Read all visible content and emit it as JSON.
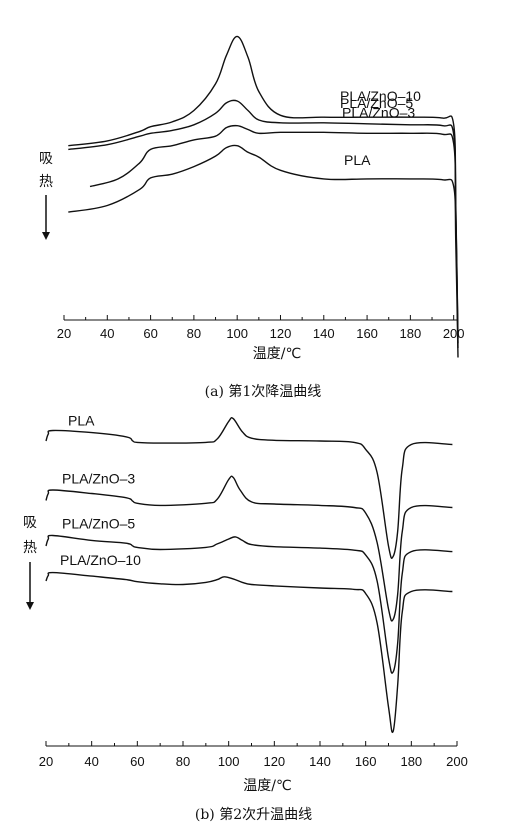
{
  "chart_data": [
    {
      "type": "line",
      "title": "",
      "caption": "(a) 第1次降温曲线",
      "xlabel": "温度/℃",
      "ylabel": "吸热",
      "xlim": [
        20,
        202
      ],
      "xticks": [
        20,
        40,
        60,
        80,
        100,
        120,
        140,
        160,
        180,
        200
      ],
      "yaxis_visible": false,
      "legend": "inline labels",
      "series": [
        {
          "name": "PLA/ZnO–10",
          "x": [
            22,
            40,
            55,
            60,
            70,
            80,
            90,
            95,
            100,
            105,
            110,
            120,
            140,
            160,
            180,
            195,
            200,
            201,
            202
          ],
          "y": [
            -0.27,
            -0.22,
            -0.12,
            -0.07,
            -0.02,
            0.1,
            0.38,
            0.68,
            0.88,
            0.66,
            0.3,
            0.05,
            0.03,
            0.03,
            0.03,
            0.02,
            -0.05,
            -0.9,
            -2.3
          ]
        },
        {
          "name": "PLA/ZnO–5",
          "x": [
            22,
            40,
            55,
            60,
            70,
            80,
            90,
            95,
            100,
            105,
            110,
            120,
            140,
            160,
            180,
            195,
            200,
            201,
            202
          ],
          "y": [
            -0.31,
            -0.26,
            -0.17,
            -0.14,
            -0.11,
            -0.05,
            0.07,
            0.18,
            0.2,
            0.1,
            0.0,
            -0.03,
            -0.03,
            -0.04,
            -0.05,
            -0.06,
            -0.15,
            -0.95,
            -2.35
          ]
        },
        {
          "name": "PLA/ZnO–3",
          "x": [
            32,
            45,
            55,
            60,
            70,
            80,
            90,
            95,
            100,
            105,
            110,
            120,
            140,
            160,
            180,
            195,
            200,
            201,
            202
          ],
          "y": [
            -0.7,
            -0.62,
            -0.45,
            -0.31,
            -0.27,
            -0.21,
            -0.17,
            -0.08,
            -0.06,
            -0.1,
            -0.14,
            -0.13,
            -0.13,
            -0.14,
            -0.14,
            -0.15,
            -0.25,
            -1.05,
            -2.4
          ]
        },
        {
          "name": "PLA",
          "x": [
            22,
            40,
            55,
            60,
            70,
            80,
            90,
            95,
            100,
            105,
            110,
            120,
            140,
            160,
            180,
            195,
            200,
            201,
            202
          ],
          "y": [
            -0.97,
            -0.9,
            -0.73,
            -0.61,
            -0.57,
            -0.49,
            -0.38,
            -0.29,
            -0.27,
            -0.34,
            -0.39,
            -0.53,
            -0.62,
            -0.62,
            -0.62,
            -0.63,
            -0.7,
            -1.3,
            -2.5
          ]
        }
      ]
    },
    {
      "type": "line",
      "title": "",
      "caption": "(b) 第2次升温曲线",
      "xlabel": "温度/℃",
      "ylabel": "吸热",
      "xlim": [
        20,
        200
      ],
      "xticks": [
        20,
        40,
        60,
        80,
        100,
        120,
        140,
        160,
        180,
        200
      ],
      "yaxis_visible": false,
      "legend": "inline labels",
      "series": [
        {
          "name": "PLA",
          "x": [
            20,
            21,
            23,
            40,
            55,
            58,
            60,
            70,
            90,
            95,
            100,
            102,
            106,
            110,
            120,
            140,
            155,
            160,
            165,
            170,
            172,
            174,
            176,
            180,
            198
          ],
          "y": [
            -0.1,
            0.0,
            0.05,
            0.02,
            -0.04,
            -0.1,
            -0.12,
            -0.13,
            -0.12,
            -0.07,
            0.18,
            0.22,
            0.03,
            -0.06,
            -0.09,
            -0.1,
            -0.12,
            -0.22,
            -0.55,
            -1.6,
            -1.75,
            -1.4,
            -0.5,
            -0.15,
            -0.15
          ]
        },
        {
          "name": "PLA/ZnO–3",
          "x": [
            20,
            21,
            23,
            40,
            55,
            58,
            60,
            70,
            90,
            95,
            100,
            102,
            105,
            110,
            120,
            140,
            155,
            160,
            165,
            170,
            172,
            174,
            176,
            180,
            198
          ],
          "y": [
            -0.95,
            -0.85,
            -0.8,
            -0.85,
            -0.91,
            -0.96,
            -0.99,
            -1.02,
            -0.99,
            -0.93,
            -0.65,
            -0.62,
            -0.8,
            -0.97,
            -1.0,
            -1.02,
            -1.05,
            -1.13,
            -1.55,
            -2.5,
            -2.65,
            -2.3,
            -1.4,
            -1.05,
            -1.05
          ]
        },
        {
          "name": "PLA/ZnO–5",
          "x": [
            20,
            21,
            23,
            40,
            55,
            58,
            60,
            70,
            90,
            95,
            100,
            103,
            106,
            110,
            120,
            140,
            155,
            160,
            165,
            170,
            172,
            174,
            176,
            180,
            198
          ],
          "y": [
            -1.6,
            -1.5,
            -1.45,
            -1.52,
            -1.56,
            -1.6,
            -1.62,
            -1.65,
            -1.62,
            -1.57,
            -1.5,
            -1.47,
            -1.52,
            -1.58,
            -1.61,
            -1.63,
            -1.66,
            -1.73,
            -2.1,
            -3.2,
            -3.4,
            -3.0,
            -2.0,
            -1.68,
            -1.68
          ]
        },
        {
          "name": "PLA/ZnO–10",
          "x": [
            20,
            21,
            23,
            40,
            55,
            60,
            70,
            80,
            90,
            95,
            98,
            102,
            106,
            110,
            120,
            140,
            155,
            160,
            165,
            170,
            172,
            174,
            176,
            180,
            198
          ],
          "y": [
            -2.1,
            -2.02,
            -1.98,
            -2.03,
            -2.08,
            -2.11,
            -2.14,
            -2.15,
            -2.12,
            -2.08,
            -2.04,
            -2.07,
            -2.12,
            -2.15,
            -2.17,
            -2.2,
            -2.22,
            -2.28,
            -2.7,
            -3.9,
            -4.25,
            -3.6,
            -2.55,
            -2.25,
            -2.25
          ]
        }
      ]
    }
  ]
}
